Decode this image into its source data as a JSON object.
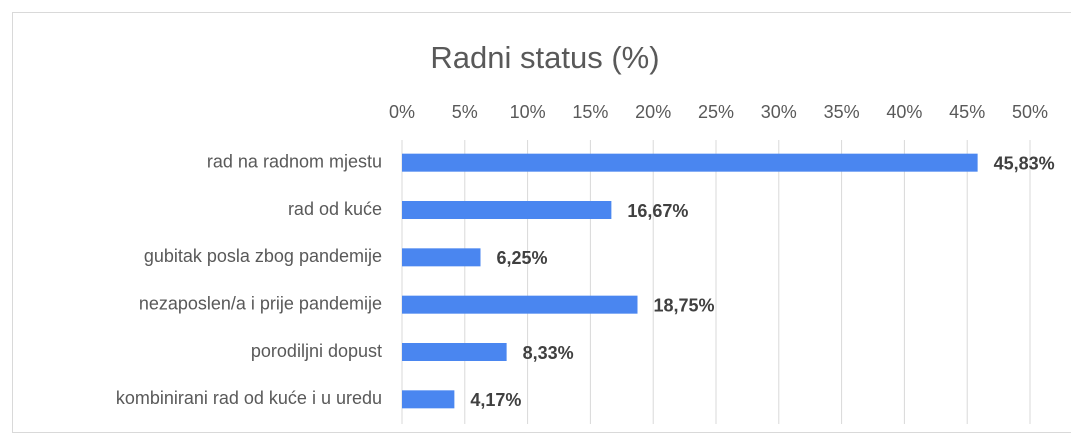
{
  "chart_data": {
    "type": "barh",
    "title": "Radni status (%)",
    "categories": [
      "rad na radnom mjestu",
      "rad od kuće",
      "gubitak posla zbog pandemije",
      "nezaposlen/a i prije pandemije",
      "porodiljni dopust",
      "kombinirani rad od kuće i u uredu"
    ],
    "values": [
      45.83,
      16.67,
      6.25,
      18.75,
      8.33,
      4.17
    ],
    "value_labels": [
      "45,83%",
      "16,67%",
      "6,25%",
      "18,75%",
      "8,33%",
      "4,17%"
    ],
    "color": "#4a86f0",
    "xlim": [
      0,
      50
    ],
    "xticks": [
      {
        "value": 0,
        "label": "0%"
      },
      {
        "value": 5,
        "label": "5%"
      },
      {
        "value": 10,
        "label": "10%"
      },
      {
        "value": 15,
        "label": "15%"
      },
      {
        "value": 20,
        "label": "20%"
      },
      {
        "value": 25,
        "label": "25%"
      },
      {
        "value": 30,
        "label": "30%"
      },
      {
        "value": 35,
        "label": "35%"
      },
      {
        "value": 40,
        "label": "40%"
      },
      {
        "value": 45,
        "label": "45%"
      },
      {
        "value": 50,
        "label": "50%"
      }
    ],
    "grid": true
  }
}
